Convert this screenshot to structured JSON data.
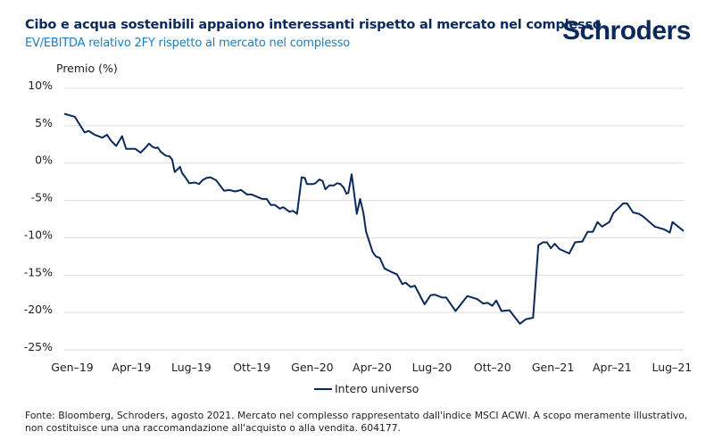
{
  "header": {
    "title": "Cibo e acqua sostenibili appaiono interessanti rispetto al mercato nel complesso",
    "subtitle": "EV/EBITDA relativo 2FY rispetto al mercato nel complesso",
    "logo": "Schroders"
  },
  "footer": {
    "line1": "Fonte: Bloomberg, Schroders, agosto 2021. Mercato nel complesso rappresentato dall'indice MSCI ACWI. A scopo meramente illustrativo,",
    "line2": "non costituisce una una raccomandazione all'acquisto o alla vendita. 604177."
  },
  "colors": {
    "title": "#0b2a5b",
    "subtitle": "#1a7dc2",
    "series": "#0b2a5b",
    "grid": "#dddddd"
  },
  "chart_data": {
    "type": "line",
    "title": "Cibo e acqua sostenibili appaiono interessanti rispetto al mercato nel complesso",
    "subtitle": "EV/EBITDA relativo 2FY rispetto al mercato nel complesso",
    "ylabel": "Premio (%)",
    "xlabel": "",
    "ylim": [
      -25,
      10
    ],
    "yticks": [
      10,
      5,
      0,
      -5,
      -10,
      -15,
      -20,
      -25
    ],
    "ytick_labels": [
      "10%",
      "5%",
      "0%",
      "-5%",
      "-10%",
      "-15%",
      "-20%",
      "-25%"
    ],
    "xlim": [
      "2019-01-01",
      "2021-07-31"
    ],
    "xticks": [
      "2019-01-01",
      "2019-04-01",
      "2019-07-01",
      "2019-10-01",
      "2020-01-01",
      "2020-04-01",
      "2020-07-01",
      "2020-10-01",
      "2021-01-01",
      "2021-04-01",
      "2021-07-01"
    ],
    "xtick_labels": [
      "Gen–19",
      "Apr–19",
      "Lug–19",
      "Ott–19",
      "Gen–20",
      "Apr–20",
      "Lug–20",
      "Ott–20",
      "Gen–21",
      "Apr–21",
      "Lug–21"
    ],
    "grid": "horizontal",
    "legend_position": "bottom-center",
    "series": [
      {
        "name": "Intero universo",
        "x": [
          "2019-01-01",
          "2019-01-17",
          "2019-02-01",
          "2019-02-07",
          "2019-02-16",
          "2019-02-28",
          "2019-03-07",
          "2019-03-13",
          "2019-03-21",
          "2019-03-30",
          "2019-04-05",
          "2019-04-19",
          "2019-04-27",
          "2019-05-05",
          "2019-05-10",
          "2019-05-15",
          "2019-05-20",
          "2019-05-23",
          "2019-05-28",
          "2019-06-04",
          "2019-06-10",
          "2019-06-14",
          "2019-06-18",
          "2019-06-26",
          "2019-06-29",
          "2019-07-04",
          "2019-07-10",
          "2019-07-19",
          "2019-07-25",
          "2019-07-30",
          "2019-08-05",
          "2019-08-11",
          "2019-08-20",
          "2019-09-01",
          "2019-09-09",
          "2019-09-18",
          "2019-09-27",
          "2019-10-06",
          "2019-10-13",
          "2019-10-29",
          "2019-11-05",
          "2019-11-11",
          "2019-11-17",
          "2019-11-25",
          "2019-11-30",
          "2019-12-09",
          "2019-12-15",
          "2019-12-21",
          "2019-12-28",
          "2020-01-02",
          "2020-01-05",
          "2020-01-14",
          "2020-01-18",
          "2020-01-24",
          "2020-01-29",
          "2020-02-02",
          "2020-02-08",
          "2020-02-15",
          "2020-02-20",
          "2020-02-25",
          "2020-03-01",
          "2020-03-05",
          "2020-03-08",
          "2020-03-13",
          "2020-03-16",
          "2020-03-21",
          "2020-03-26",
          "2020-03-31",
          "2020-04-04",
          "2020-04-14",
          "2020-04-19",
          "2020-04-25",
          "2020-05-02",
          "2020-05-13",
          "2020-05-21",
          "2020-05-29",
          "2020-06-03",
          "2020-06-11",
          "2020-06-17",
          "2020-07-02",
          "2020-07-11",
          "2020-07-17",
          "2020-07-29",
          "2020-08-04",
          "2020-08-18",
          "2020-09-05",
          "2020-09-20",
          "2020-09-29",
          "2020-10-06",
          "2020-10-13",
          "2020-10-19",
          "2020-10-27",
          "2020-11-08",
          "2020-11-24",
          "2020-12-03",
          "2020-12-14",
          "2020-12-22",
          "2020-12-29",
          "2021-01-04",
          "2021-01-10",
          "2021-01-16",
          "2021-01-23",
          "2021-02-07",
          "2021-02-16",
          "2021-02-27",
          "2021-03-07",
          "2021-03-15",
          "2021-03-22",
          "2021-03-29",
          "2021-04-09",
          "2021-04-15",
          "2021-04-22",
          "2021-04-30",
          "2021-05-06",
          "2021-05-15",
          "2021-05-24",
          "2021-05-31",
          "2021-06-09",
          "2021-06-17",
          "2021-07-02",
          "2021-07-10",
          "2021-07-14",
          "2021-07-31"
        ],
        "y": [
          6.6,
          6.2,
          4.1,
          4.3,
          3.8,
          3.4,
          3.8,
          3.0,
          2.3,
          3.6,
          1.9,
          1.9,
          1.4,
          2.1,
          2.6,
          2.2,
          2.0,
          2.1,
          1.5,
          1.0,
          0.9,
          0.5,
          -1.2,
          -0.5,
          -1.3,
          -1.9,
          -2.7,
          -2.6,
          -2.8,
          -2.3,
          -2.0,
          -1.9,
          -2.3,
          -3.7,
          -3.6,
          -3.8,
          -3.6,
          -4.2,
          -4.2,
          -4.8,
          -4.8,
          -5.6,
          -5.6,
          -6.1,
          -5.9,
          -6.5,
          -6.4,
          -6.8,
          -1.9,
          -2.0,
          -2.8,
          -2.8,
          -2.7,
          -2.2,
          -2.4,
          -3.5,
          -3.0,
          -3.0,
          -2.7,
          -2.8,
          -3.3,
          -4.1,
          -4.0,
          -1.5,
          -3.5,
          -6.8,
          -4.8,
          -6.7,
          -9.2,
          -11.9,
          -12.5,
          -12.7,
          -14.1,
          -14.6,
          -14.9,
          -16.2,
          -16.0,
          -16.6,
          -16.4,
          -18.9,
          -17.7,
          -17.6,
          -18.0,
          -18.0,
          -19.8,
          -17.8,
          -18.2,
          -18.8,
          -18.7,
          -19.1,
          -18.4,
          -19.8,
          -19.7,
          -21.5,
          -20.9,
          -20.7,
          -11.0,
          -10.6,
          -10.6,
          -11.4,
          -10.8,
          -11.5,
          -12.1,
          -10.6,
          -10.5,
          -9.2,
          -9.2,
          -7.9,
          -8.5,
          -7.9,
          -6.7,
          -6.1,
          -5.4,
          -5.4,
          -6.6,
          -6.8,
          -7.2,
          -7.9,
          -8.5,
          -8.9,
          -9.3,
          -7.9,
          -9.1
        ]
      }
    ]
  }
}
